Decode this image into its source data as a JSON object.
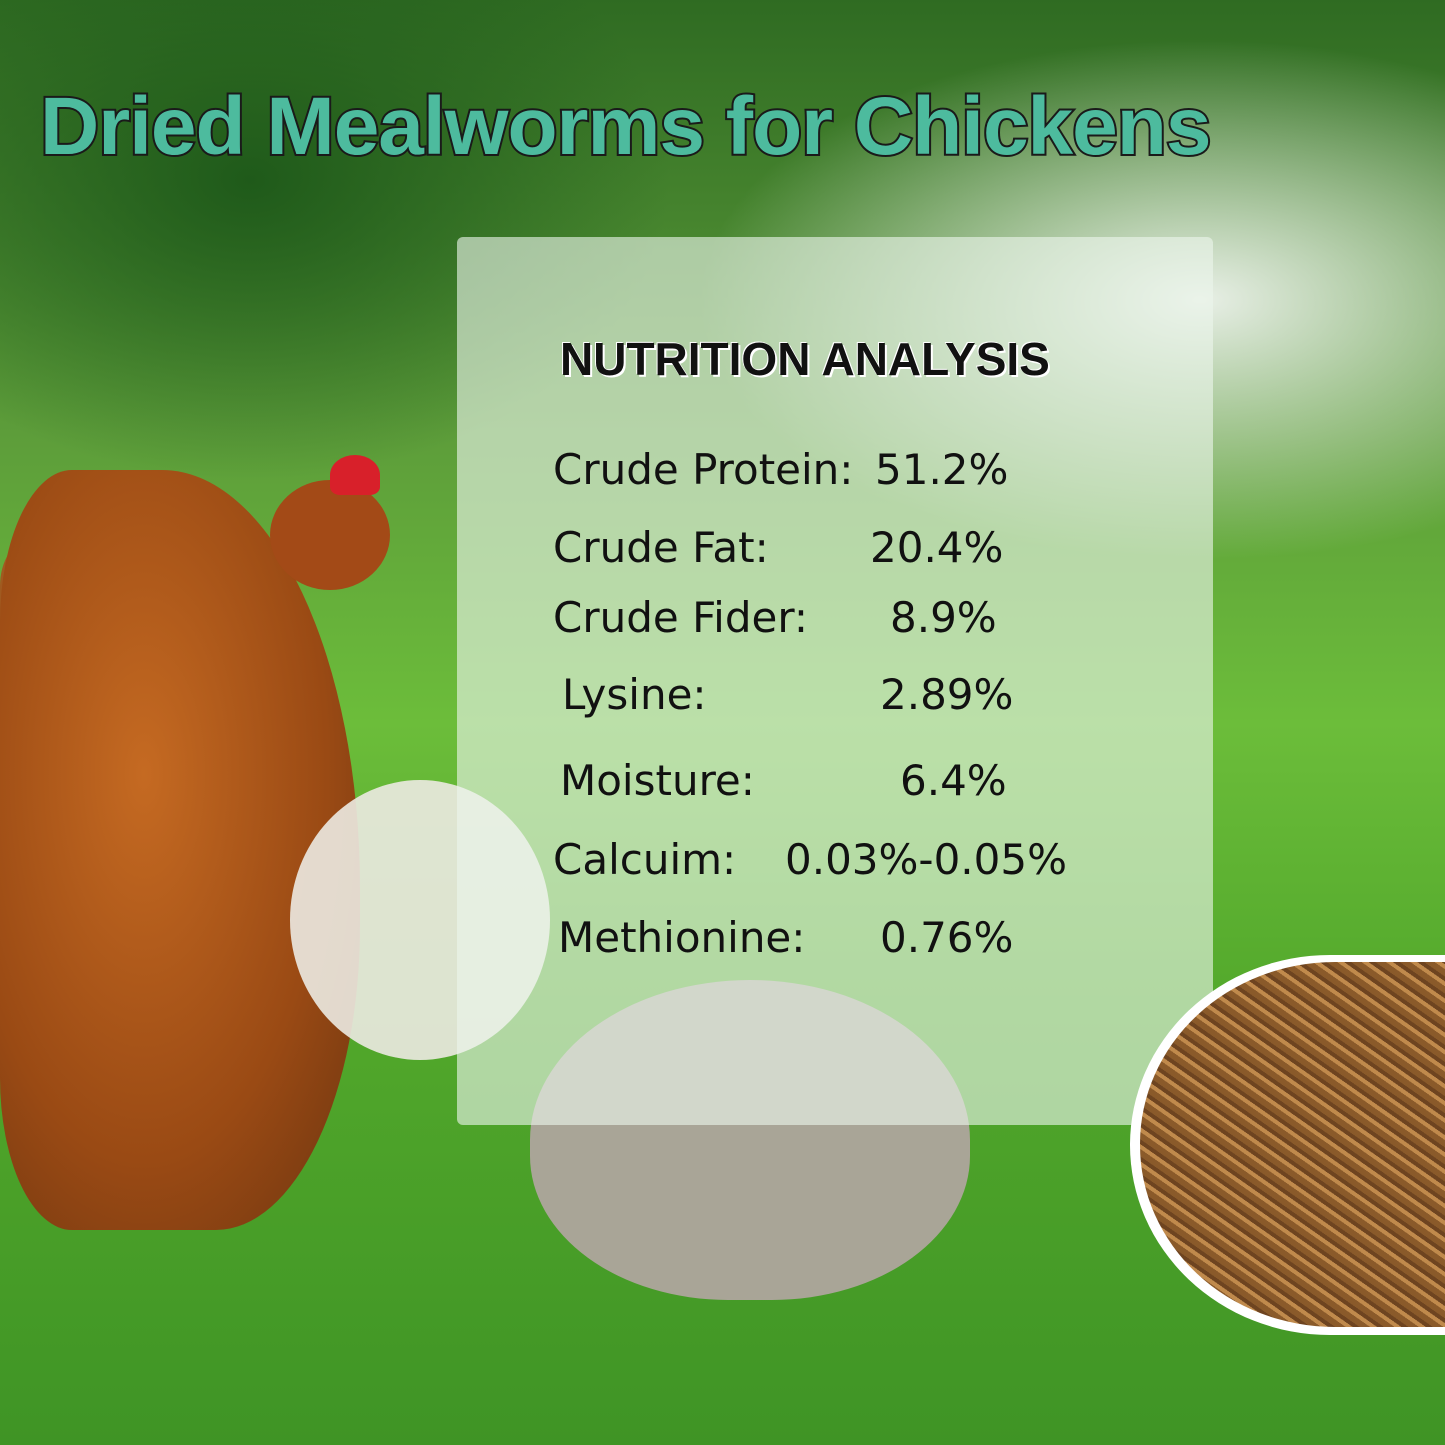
{
  "title": "Dried Mealworms for Chickens",
  "panel": {
    "heading": "NUTRITION ANALYSIS",
    "rows": [
      {
        "label": "Crude Protein:",
        "value": "51.2%"
      },
      {
        "label": "Crude Fat:",
        "value": "20.4%"
      },
      {
        "label": "Crude Fider:",
        "value": "8.9%"
      },
      {
        "label": "Lysine:",
        "value": "2.89%"
      },
      {
        "label": "Moisture:",
        "value": "6.4%"
      },
      {
        "label": "Calcuim:",
        "value": "0.03%-0.05%"
      },
      {
        "label": "Methionine:",
        "value": "0.76%"
      }
    ]
  },
  "colors": {
    "title": "#4dbb9e",
    "title_outline": "#1a1a1a"
  }
}
